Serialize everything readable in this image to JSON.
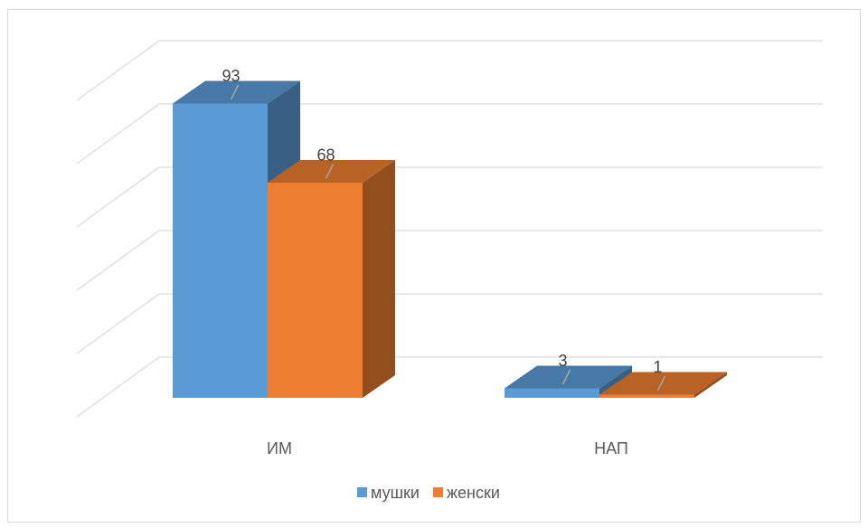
{
  "chart_data": {
    "type": "bar",
    "subtype": "3d-clustered-column",
    "title": "",
    "categories": [
      "ИМ",
      "НАП"
    ],
    "series": [
      {
        "name": "мушки",
        "values": [
          93,
          3
        ],
        "color": "#5B9BD5"
      },
      {
        "name": "женски",
        "values": [
          68,
          1
        ],
        "color": "#ED7D31"
      }
    ],
    "ylim": [
      0,
      100
    ],
    "grid": true,
    "legend_position": "bottom",
    "data_labels": true
  }
}
